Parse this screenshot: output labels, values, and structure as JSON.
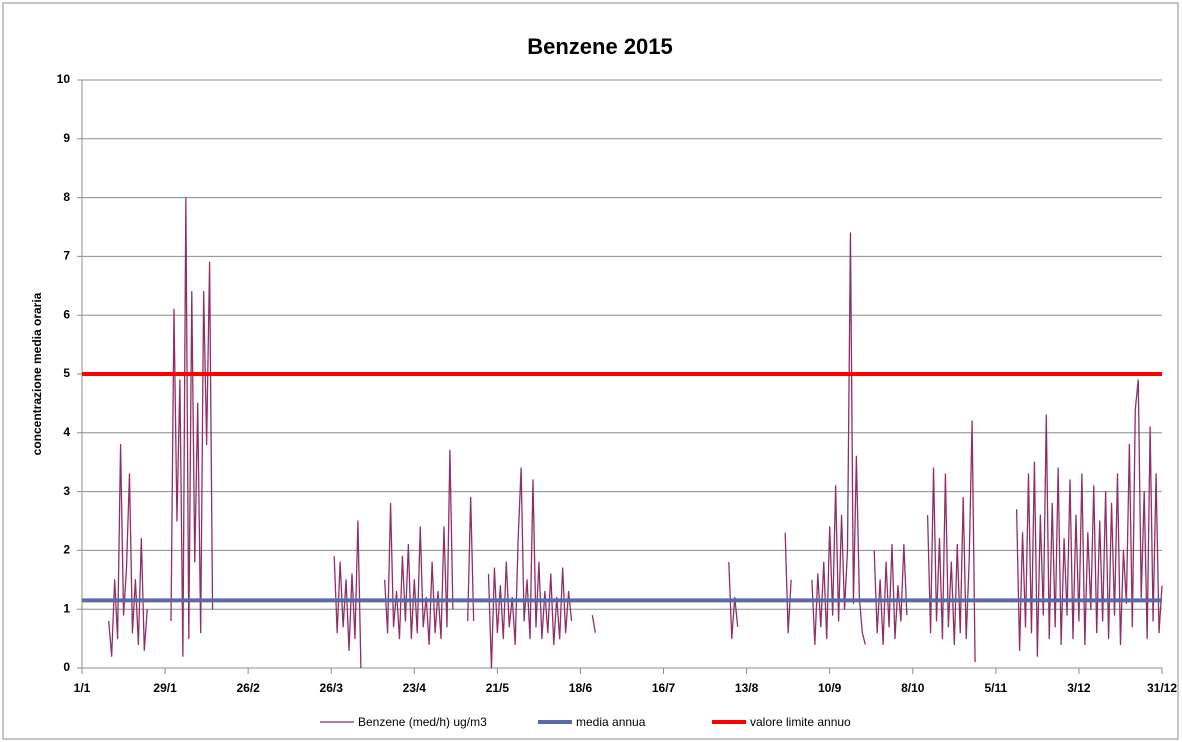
{
  "chart_data": {
    "type": "line",
    "title": "Benzene 2015",
    "y_label": "concentrazione media oraria",
    "xlim": [
      0,
      364
    ],
    "xticks": [
      {
        "value": 0,
        "label": "1/1"
      },
      {
        "value": 28,
        "label": "29/1"
      },
      {
        "value": 56,
        "label": "26/2"
      },
      {
        "value": 84,
        "label": "26/3"
      },
      {
        "value": 112,
        "label": "23/4"
      },
      {
        "value": 140,
        "label": "21/5"
      },
      {
        "value": 168,
        "label": "18/6"
      },
      {
        "value": 196,
        "label": "16/7"
      },
      {
        "value": 224,
        "label": "13/8"
      },
      {
        "value": 252,
        "label": "10/9"
      },
      {
        "value": 280,
        "label": "8/10"
      },
      {
        "value": 308,
        "label": "5/11"
      },
      {
        "value": 336,
        "label": "3/12"
      },
      {
        "value": 364,
        "label": "31/12"
      }
    ],
    "ylim": [
      0,
      10
    ],
    "yticks": [
      0,
      1,
      2,
      3,
      4,
      5,
      6,
      7,
      8,
      9,
      10
    ],
    "grid": true,
    "legend": "bottom",
    "series": [
      {
        "name": "Benzene (med/h) ug/m3",
        "color": "#8e2f67",
        "width": 1.3,
        "x": [
          9,
          10,
          11,
          12,
          13,
          14,
          15,
          16,
          17,
          18,
          19,
          20,
          21,
          22,
          26,
          30,
          31,
          32,
          33,
          34,
          35,
          36,
          37,
          38,
          39,
          40,
          41,
          42,
          43,
          44,
          60,
          85,
          86,
          87,
          88,
          89,
          90,
          91,
          92,
          93,
          94,
          98,
          102,
          103,
          104,
          105,
          106,
          107,
          108,
          109,
          110,
          111,
          112,
          113,
          114,
          115,
          116,
          117,
          118,
          119,
          120,
          121,
          122,
          123,
          124,
          125,
          128,
          130,
          131,
          132,
          134,
          137,
          138,
          139,
          140,
          141,
          142,
          143,
          144,
          145,
          146,
          147,
          148,
          149,
          150,
          151,
          152,
          153,
          154,
          155,
          156,
          157,
          158,
          159,
          160,
          161,
          162,
          163,
          164,
          165,
          168,
          172,
          173,
          190,
          218,
          219,
          220,
          221,
          228,
          237,
          238,
          239,
          242,
          246,
          247,
          248,
          249,
          250,
          251,
          252,
          253,
          254,
          255,
          256,
          257,
          258,
          259,
          260,
          261,
          262,
          263,
          264,
          265,
          267,
          268,
          269,
          270,
          271,
          272,
          273,
          274,
          275,
          276,
          277,
          278,
          282,
          285,
          286,
          287,
          288,
          289,
          290,
          291,
          292,
          293,
          294,
          295,
          296,
          297,
          298,
          299,
          300,
          301,
          310,
          315,
          316,
          317,
          318,
          319,
          320,
          321,
          322,
          323,
          324,
          325,
          326,
          327,
          328,
          329,
          330,
          331,
          332,
          333,
          334,
          335,
          336,
          337,
          338,
          339,
          340,
          341,
          342,
          343,
          344,
          345,
          346,
          347,
          348,
          349,
          350,
          351,
          352,
          353,
          354,
          355,
          356,
          357,
          358,
          359,
          360,
          361,
          362,
          363,
          364
        ],
        "values": [
          0.8,
          0.2,
          1.5,
          0.5,
          3.8,
          0.9,
          1.7,
          3.3,
          0.6,
          1.5,
          0.4,
          2.2,
          0.3,
          1.0,
          null,
          0.8,
          6.1,
          2.5,
          4.9,
          0.2,
          8.0,
          0.5,
          6.4,
          1.8,
          4.5,
          0.6,
          6.4,
          3.8,
          6.9,
          1.0,
          null,
          1.9,
          0.6,
          1.8,
          0.7,
          1.5,
          0.3,
          1.6,
          0.5,
          2.5,
          0.0,
          null,
          1.5,
          0.6,
          2.8,
          0.7,
          1.3,
          0.5,
          1.9,
          0.8,
          2.1,
          0.5,
          1.5,
          0.6,
          2.4,
          0.7,
          1.2,
          0.4,
          1.8,
          0.6,
          1.3,
          0.5,
          2.4,
          0.7,
          3.7,
          1.0,
          null,
          0.8,
          2.9,
          0.8,
          null,
          1.6,
          0.0,
          1.7,
          0.6,
          1.4,
          0.5,
          1.8,
          0.7,
          1.2,
          0.4,
          2.2,
          3.4,
          0.8,
          1.5,
          0.5,
          3.2,
          0.7,
          1.8,
          0.5,
          1.3,
          0.6,
          1.6,
          0.4,
          1.2,
          0.5,
          1.7,
          0.6,
          1.3,
          0.8,
          null,
          0.9,
          0.6,
          null,
          1.8,
          0.5,
          1.2,
          0.7,
          null,
          2.3,
          0.6,
          1.5,
          null,
          1.5,
          0.4,
          1.6,
          0.7,
          1.8,
          0.5,
          2.4,
          0.9,
          3.1,
          0.8,
          2.6,
          1.0,
          2.0,
          7.4,
          1.1,
          3.6,
          1.2,
          0.6,
          0.4,
          null,
          2.0,
          0.6,
          1.5,
          0.4,
          1.8,
          0.7,
          2.1,
          0.5,
          1.4,
          0.8,
          2.1,
          0.9,
          null,
          2.6,
          0.6,
          3.4,
          0.8,
          2.2,
          0.5,
          3.3,
          0.7,
          1.8,
          0.4,
          2.1,
          0.6,
          2.9,
          0.5,
          1.8,
          4.2,
          0.1,
          null,
          2.7,
          0.3,
          2.3,
          0.7,
          3.3,
          0.6,
          3.5,
          0.2,
          2.6,
          0.9,
          4.3,
          0.5,
          2.8,
          0.7,
          3.4,
          0.4,
          2.2,
          0.9,
          3.2,
          0.5,
          2.6,
          0.8,
          3.3,
          0.4,
          2.3,
          1.0,
          3.1,
          0.6,
          2.5,
          0.8,
          3.0,
          0.5,
          2.8,
          0.9,
          3.3,
          0.4,
          2.0,
          1.1,
          3.8,
          0.7,
          4.4,
          4.9,
          1.2,
          3.0,
          0.5,
          4.1,
          0.8,
          3.3,
          0.6,
          1.4
        ]
      },
      {
        "name": "media annua",
        "color": "#5b6aa6",
        "width": 4,
        "x": [
          0,
          364
        ],
        "values": [
          1.15,
          1.15
        ]
      },
      {
        "name": "valore limite annuo",
        "color": "#ff0000",
        "width": 4,
        "x": [
          0,
          364
        ],
        "values": [
          5,
          5
        ]
      }
    ]
  }
}
